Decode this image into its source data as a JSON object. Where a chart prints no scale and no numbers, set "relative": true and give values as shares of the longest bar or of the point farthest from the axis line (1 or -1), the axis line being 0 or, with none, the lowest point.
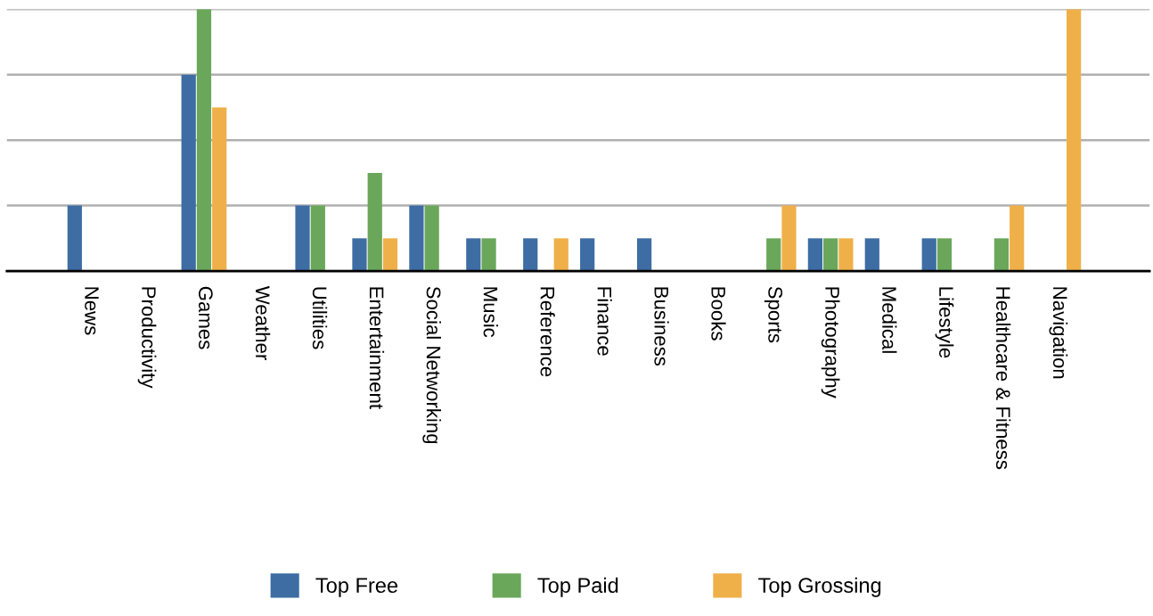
{
  "chart_data": {
    "type": "bar",
    "relative": true,
    "grid": "y",
    "legend": "bottom",
    "categories": [
      "News",
      "Productivity",
      "Games",
      "Weather",
      "Utilities",
      "Entertainment",
      "Social Networking",
      "Music",
      "Reference",
      "Finance",
      "Business",
      "Books",
      "Sports",
      "Photography",
      "Medical",
      "Lifestyle",
      "Healthcare & Fitness",
      "Navigation"
    ],
    "series": [
      {
        "name": "Top Free",
        "color": "#3d6da3",
        "values": [
          0.25,
          0,
          0.75,
          0,
          0.25,
          0.125,
          0.25,
          0.125,
          0.125,
          0.125,
          0.125,
          0,
          0,
          0.125,
          0.125,
          0.125,
          0,
          0
        ]
      },
      {
        "name": "Top Paid",
        "color": "#6aa75a",
        "values": [
          0,
          0,
          1,
          0,
          0.25,
          0.375,
          0.25,
          0.125,
          0,
          0,
          0,
          0,
          0.125,
          0.125,
          0,
          0.125,
          0.125,
          0
        ]
      },
      {
        "name": "Top Grossing",
        "color": "#efb04a",
        "values": [
          0,
          0,
          0.625,
          0,
          0,
          0.125,
          0,
          0,
          0.125,
          0,
          0,
          0,
          0.25,
          0.125,
          0,
          0,
          0.25,
          1
        ]
      }
    ]
  }
}
